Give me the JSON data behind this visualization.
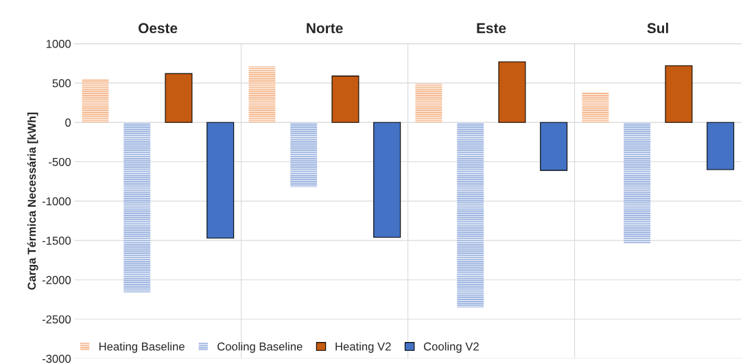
{
  "chart_data": {
    "type": "bar",
    "ylabel": "Carga Térmica Necessária [kWh]",
    "categories": [
      "Oeste",
      "Norte",
      "Este",
      "Sul"
    ],
    "series": [
      {
        "name": "Heating Baseline",
        "color": "#f4b183",
        "values": [
          550,
          710,
          490,
          380
        ]
      },
      {
        "name": "Cooling Baseline",
        "color": "#8faadc",
        "values": [
          -2160,
          -820,
          -2350,
          -1540
        ]
      },
      {
        "name": "Heating V2",
        "color": "#c55a11",
        "values": [
          620,
          590,
          770,
          720
        ]
      },
      {
        "name": "Cooling V2",
        "color": "#4472c4",
        "values": [
          -1470,
          -1460,
          -610,
          -600
        ]
      }
    ],
    "ylim": [
      -3000,
      1000
    ],
    "yticks": [
      -3000,
      -2500,
      -2000,
      -1500,
      -1000,
      -500,
      0,
      500,
      1000
    ],
    "grid": true,
    "legend": "bottom left"
  }
}
